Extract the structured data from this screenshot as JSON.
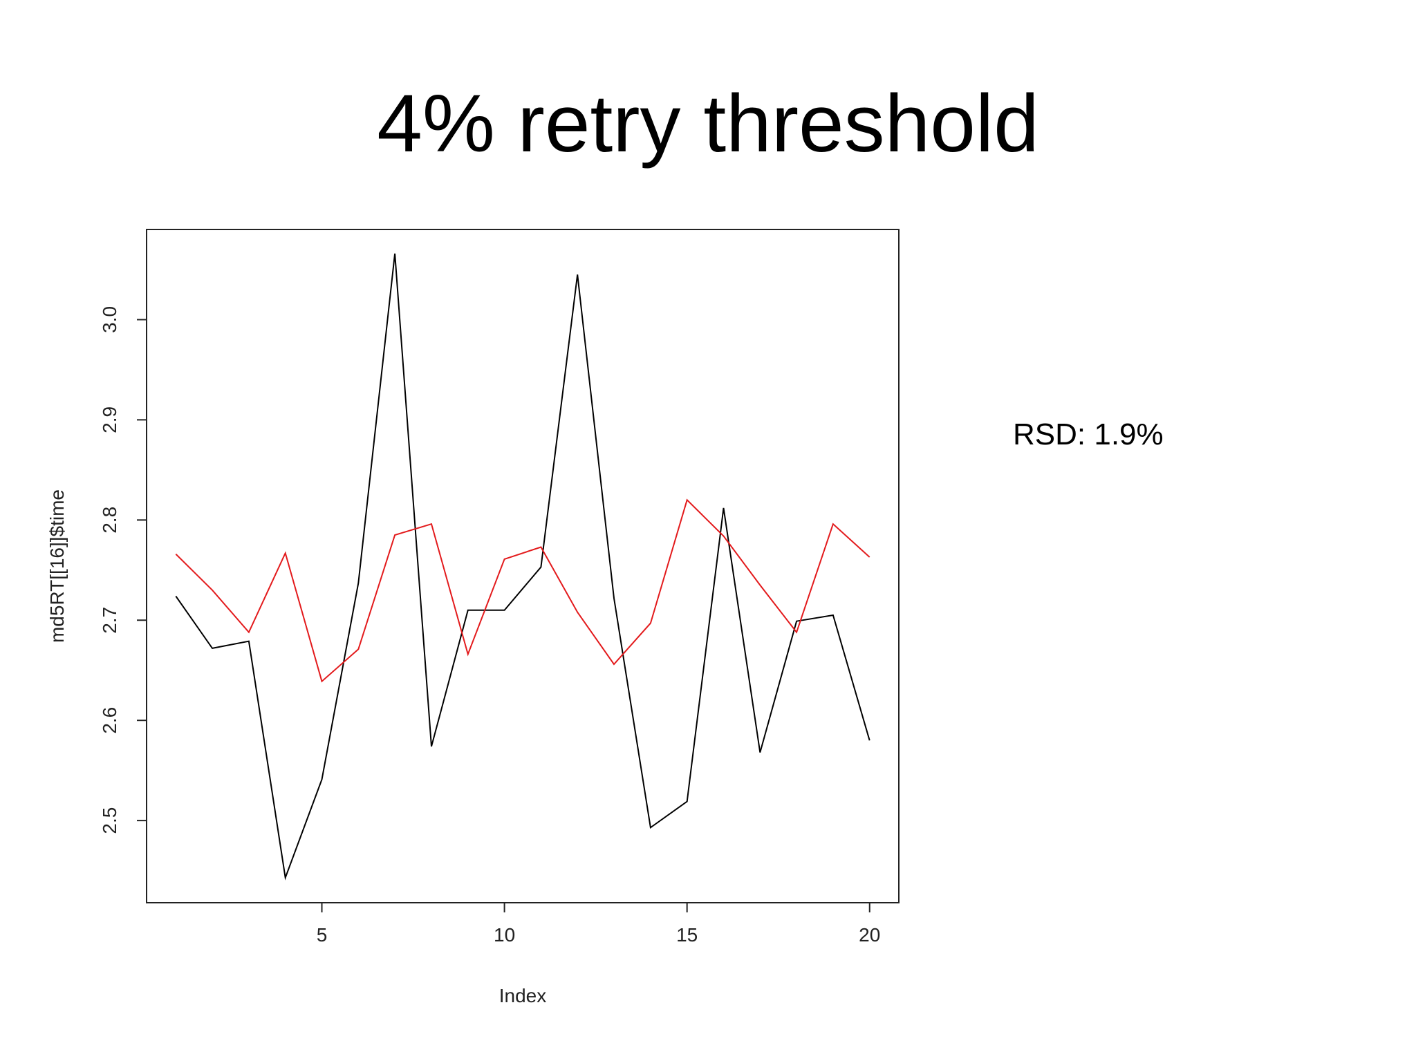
{
  "slide": {
    "title": "4% retry threshold",
    "note": "RSD: 1.9%"
  },
  "chart_data": {
    "type": "line",
    "xlabel": "Index",
    "ylabel": "md5RT[[16]]$time",
    "xlim": [
      0.2,
      20.8
    ],
    "ylim": [
      2.418,
      3.09
    ],
    "xticks": [
      5,
      10,
      15,
      20
    ],
    "yticks": [
      2.5,
      2.6,
      2.7,
      2.8,
      2.9,
      3.0
    ],
    "xtick_labels": [
      "5",
      "10",
      "15",
      "20"
    ],
    "ytick_labels": [
      "2.5",
      "2.6",
      "2.7",
      "2.8",
      "2.9",
      "3.0"
    ],
    "grid": false,
    "legend": "none",
    "x": [
      1,
      2,
      3,
      4,
      5,
      6,
      7,
      8,
      9,
      10,
      11,
      12,
      13,
      14,
      15,
      16,
      17,
      18,
      19,
      20
    ],
    "series": [
      {
        "color": "#000000",
        "values": [
          2.724,
          2.672,
          2.679,
          2.443,
          2.541,
          2.737,
          3.066,
          2.574,
          2.71,
          2.71,
          2.753,
          3.045,
          2.722,
          2.493,
          2.519,
          2.812,
          2.568,
          2.699,
          2.705,
          2.58
        ]
      },
      {
        "color": "#e31a1c",
        "values": [
          2.766,
          2.73,
          2.688,
          2.767,
          2.639,
          2.671,
          2.785,
          2.796,
          2.666,
          2.761,
          2.773,
          2.708,
          2.656,
          2.697,
          2.82,
          2.784,
          2.735,
          2.688,
          2.796,
          2.763
        ]
      }
    ]
  }
}
